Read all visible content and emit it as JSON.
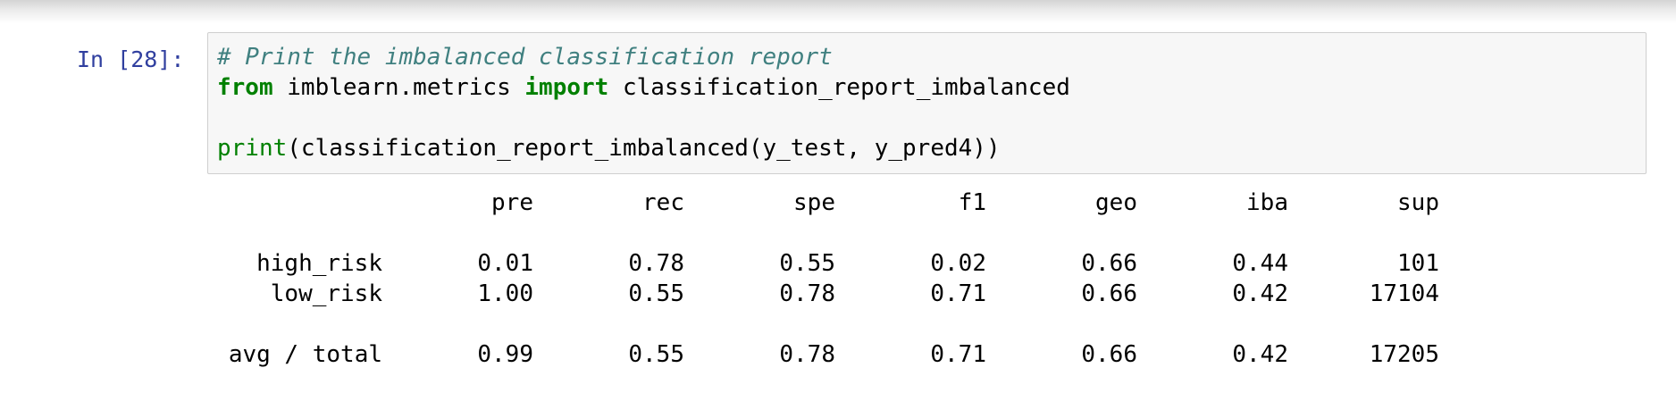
{
  "cell": {
    "prompt": "In [28]:",
    "code": {
      "comment": "# Print the imbalanced classification report",
      "from_kw": "from",
      "module": "imblearn.metrics",
      "import_kw": "import",
      "imported_name": "classification_report_imbalanced",
      "print_fn": "print",
      "print_args": "(classification_report_imbalanced(y_test, y_pred4))"
    }
  },
  "output": {
    "headers": [
      "pre",
      "rec",
      "spe",
      "f1",
      "geo",
      "iba",
      "sup"
    ],
    "rows": [
      {
        "label": "high_risk",
        "values": [
          "0.01",
          "0.78",
          "0.55",
          "0.02",
          "0.66",
          "0.44",
          "101"
        ]
      },
      {
        "label": "low_risk",
        "values": [
          "1.00",
          "0.55",
          "0.78",
          "0.71",
          "0.66",
          "0.42",
          "17104"
        ]
      }
    ],
    "total": {
      "label": "avg / total",
      "values": [
        "0.99",
        "0.55",
        "0.78",
        "0.71",
        "0.66",
        "0.42",
        "17205"
      ]
    }
  }
}
